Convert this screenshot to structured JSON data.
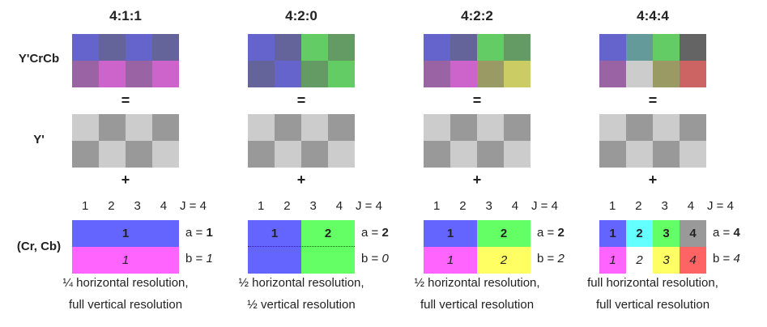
{
  "row_labels": {
    "ycrcb": "Y'CrCb",
    "y": "Y'",
    "crcb": "(Cr, Cb)"
  },
  "equals": "=",
  "plus": "+",
  "luma_pattern": [
    "#cccccc",
    "#999999",
    "#cccccc",
    "#999999",
    "#999999",
    "#cccccc",
    "#999999",
    "#cccccc"
  ],
  "columns": [
    {
      "title": "4:1:1",
      "numbers": [
        "1",
        "2",
        "3",
        "4"
      ],
      "j_label": "J = 4",
      "a_prefix": "a = ",
      "a_value": "1",
      "b_prefix": "b = ",
      "b_value": "1",
      "desc_line1": "¼ horizontal resolution,",
      "desc_line2": "full vertical resolution",
      "ycrcb": [
        "#6464cc",
        "#64649a",
        "#6464cc",
        "#64649a",
        "#9a64a4",
        "#cc64cc",
        "#9a64a4",
        "#cc64cc"
      ],
      "chroma_top_labels": [
        "1"
      ],
      "chroma_bottom_labels": [
        "1"
      ],
      "chroma_top_colors": [
        "#6464ff"
      ],
      "chroma_bottom_colors": [
        "#ff64ff"
      ]
    },
    {
      "title": "4:2:0",
      "numbers": [
        "1",
        "2",
        "3",
        "4"
      ],
      "j_label": "J = 4",
      "a_prefix": "a = ",
      "a_value": "2",
      "b_prefix": "b = ",
      "b_value": "0",
      "desc_line1": "½ horizontal resolution,",
      "desc_line2": "½ vertical resolution",
      "ycrcb": [
        "#6464cc",
        "#64649a",
        "#64cc64",
        "#649a64",
        "#64649a",
        "#6464cc",
        "#649a64",
        "#64cc64"
      ],
      "chroma_top_labels": [
        "1",
        "2"
      ],
      "chroma_bottom_labels": [],
      "chroma_top_colors": [
        "#6464ff",
        "#64ff64"
      ],
      "chroma_bottom_colors": []
    },
    {
      "title": "4:2:2",
      "numbers": [
        "1",
        "2",
        "3",
        "4"
      ],
      "j_label": "J = 4",
      "a_prefix": "a = ",
      "a_value": "2",
      "b_prefix": "b = ",
      "b_value": "2",
      "desc_line1": "½ horizontal resolution,",
      "desc_line2": "full vertical resolution",
      "ycrcb": [
        "#6464cc",
        "#64649a",
        "#64cc64",
        "#649a64",
        "#9a64a4",
        "#cc64cc",
        "#9a9a64",
        "#cccc64"
      ],
      "chroma_top_labels": [
        "1",
        "2"
      ],
      "chroma_bottom_labels": [
        "1",
        "2"
      ],
      "chroma_top_colors": [
        "#6464ff",
        "#64ff64"
      ],
      "chroma_bottom_colors": [
        "#ff64ff",
        "#ffff64"
      ]
    },
    {
      "title": "4:4:4",
      "numbers": [
        "1",
        "2",
        "3",
        "4"
      ],
      "j_label": "J = 4",
      "a_prefix": "a = ",
      "a_value": "4",
      "b_prefix": "b = ",
      "b_value": "4",
      "desc_line1": "full horizontal resolution,",
      "desc_line2": "full vertical resolution",
      "ycrcb": [
        "#6464cc",
        "#649a9a",
        "#64cc64",
        "#646464",
        "#9a64a4",
        "#cccccc",
        "#9a9a64",
        "#cc6464"
      ],
      "chroma_top_labels": [
        "1",
        "2",
        "3",
        "4"
      ],
      "chroma_bottom_labels": [
        "1",
        "2",
        "3",
        "4"
      ],
      "chroma_top_colors": [
        "#6464ff",
        "#64ffff",
        "#64ff64",
        "#999999"
      ],
      "chroma_bottom_colors": [
        "#ff64ff",
        "#ffffff",
        "#ffff64",
        "#ff6464"
      ]
    }
  ]
}
